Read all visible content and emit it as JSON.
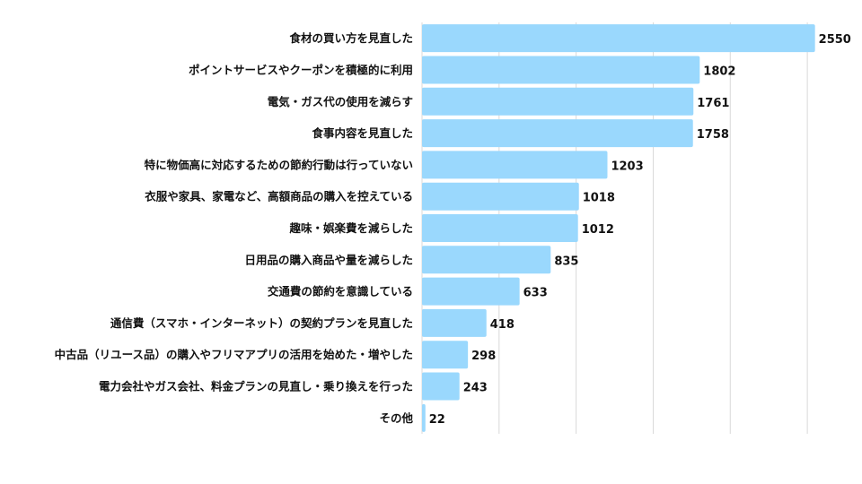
{
  "chart_data": {
    "type": "bar",
    "orientation": "horizontal",
    "categories": [
      "食材の買い方を見直した",
      "ポイントサービスやクーポンを積極的に利用",
      "電気・ガス代の使用を減らす",
      "食事内容を見直した",
      "特に物価高に対応するための節約行動は行っていない",
      "衣服や家具、家電など、高額商品の購入を控えている",
      "趣味・娯楽費を減らした",
      "日用品の購入商品や量を減らした",
      "交通費の節約を意識している",
      "通信費（スマホ・インターネット）の契約プランを見直した",
      "中古品（リユース品）の購入やフリマアプリの活用を始めた・増やした",
      "電力会社やガス会社、料金プランの見直し・乗り換えを行った",
      "その他"
    ],
    "values": [
      2550,
      1802,
      1761,
      1758,
      1203,
      1018,
      1012,
      835,
      633,
      418,
      298,
      243,
      22
    ],
    "value_labels": [
      "2550",
      "1802",
      "1761",
      "1758",
      "1203",
      "1018",
      "1012",
      "835",
      "633",
      "418",
      "298",
      "243",
      "22"
    ],
    "xlim": [
      0,
      2750
    ],
    "grid": true,
    "legend": "none",
    "bar_color": "#9ad8fd",
    "grid_color": "#d9d9d9",
    "title": "",
    "xlabel": "",
    "ylabel": ""
  }
}
